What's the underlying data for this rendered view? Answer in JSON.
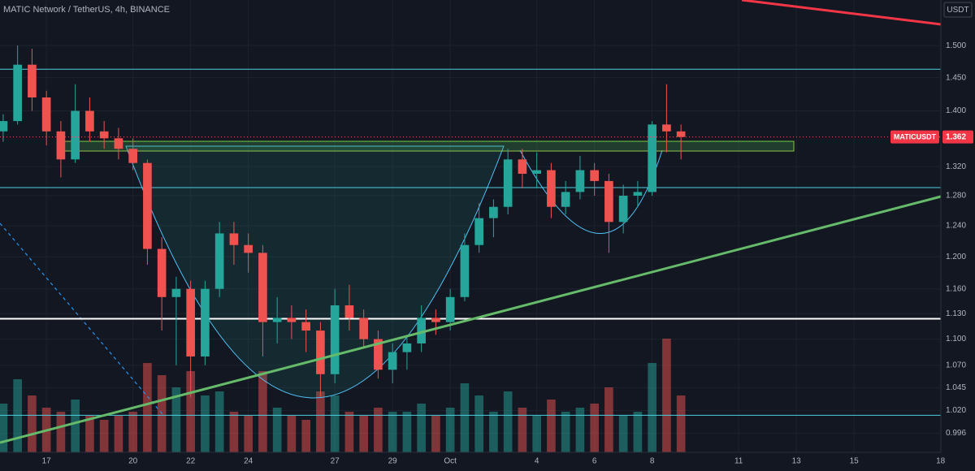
{
  "chart_data": {
    "type": "candlestick",
    "title": "MATIC Network / TetherUS, 4h, BINANCE",
    "currency": "USDT",
    "log_scale": true,
    "grid": true,
    "up_color": "#26a69a",
    "down_color": "#ef5350",
    "x": [
      15.5,
      16,
      16.5,
      17,
      17.5,
      18,
      18.5,
      19,
      19.5,
      20,
      20.5,
      21,
      21.5,
      22,
      22.5,
      23,
      23.5,
      24,
      24.5,
      25,
      25.5,
      26,
      26.5,
      27,
      27.5,
      28,
      28.5,
      29,
      29.5,
      30,
      30.5,
      31,
      31.5,
      32,
      32.5,
      33,
      33.5,
      34,
      34.5,
      35,
      35.5,
      36,
      36.5,
      37,
      37.5,
      38,
      38.5,
      39
    ],
    "open": [
      1.37,
      1.385,
      1.47,
      1.42,
      1.37,
      1.33,
      1.4,
      1.37,
      1.36,
      1.345,
      1.325,
      1.21,
      1.15,
      1.16,
      1.08,
      1.16,
      1.23,
      1.215,
      1.205,
      1.12,
      1.125,
      1.12,
      1.11,
      1.06,
      1.14,
      1.125,
      1.1,
      1.065,
      1.085,
      1.095,
      1.125,
      1.12,
      1.15,
      1.215,
      1.25,
      1.265,
      1.33,
      1.31,
      1.315,
      1.265,
      1.285,
      1.315,
      1.3,
      1.245,
      1.28,
      1.285,
      1.38,
      1.37
    ],
    "high": [
      1.395,
      1.5,
      1.495,
      1.43,
      1.385,
      1.44,
      1.42,
      1.385,
      1.375,
      1.36,
      1.33,
      1.225,
      1.175,
      1.17,
      1.17,
      1.245,
      1.245,
      1.23,
      1.215,
      1.15,
      1.14,
      1.135,
      1.12,
      1.16,
      1.165,
      1.135,
      1.11,
      1.095,
      1.105,
      1.14,
      1.135,
      1.16,
      1.23,
      1.27,
      1.275,
      1.345,
      1.345,
      1.34,
      1.325,
      1.3,
      1.335,
      1.325,
      1.31,
      1.295,
      1.3,
      1.385,
      1.44,
      1.38
    ],
    "low": [
      1.355,
      1.38,
      1.4,
      1.35,
      1.305,
      1.325,
      1.355,
      1.345,
      1.33,
      1.315,
      1.19,
      1.11,
      1.07,
      1.035,
      1.07,
      1.15,
      1.19,
      1.18,
      1.08,
      1.095,
      1.1,
      1.085,
      1.035,
      1.05,
      1.11,
      1.09,
      1.055,
      1.05,
      1.065,
      1.085,
      1.105,
      1.11,
      1.145,
      1.205,
      1.225,
      1.255,
      1.29,
      1.29,
      1.25,
      1.255,
      1.275,
      1.28,
      1.205,
      1.23,
      1.265,
      1.28,
      1.34,
      1.33
    ],
    "close": [
      1.385,
      1.47,
      1.42,
      1.37,
      1.33,
      1.4,
      1.37,
      1.36,
      1.345,
      1.325,
      1.21,
      1.15,
      1.16,
      1.08,
      1.16,
      1.23,
      1.215,
      1.205,
      1.12,
      1.125,
      1.12,
      1.11,
      1.06,
      1.14,
      1.125,
      1.1,
      1.065,
      1.085,
      1.095,
      1.125,
      1.12,
      1.15,
      1.215,
      1.25,
      1.265,
      1.33,
      1.31,
      1.315,
      1.265,
      1.285,
      1.315,
      1.3,
      1.245,
      1.28,
      1.285,
      1.38,
      1.37,
      1.362
    ],
    "volume": [
      60,
      90,
      70,
      55,
      50,
      65,
      45,
      40,
      45,
      50,
      110,
      95,
      80,
      100,
      70,
      75,
      50,
      45,
      100,
      55,
      45,
      40,
      75,
      70,
      50,
      45,
      55,
      50,
      50,
      60,
      45,
      55,
      85,
      70,
      50,
      75,
      55,
      45,
      65,
      50,
      55,
      60,
      80,
      45,
      50,
      110,
      140,
      70
    ],
    "levels": [
      1.463,
      1.291,
      1.124,
      1.015
    ],
    "last_price": {
      "symbol": "MATICUSDT",
      "value": 1.362
    },
    "xlim": [
      15.39,
      48.01
    ],
    "ylim": [
      0.976,
      1.574
    ],
    "xticks": [
      17,
      20,
      22,
      24,
      27,
      29,
      {
        "value": 31,
        "label": "Oct"
      },
      {
        "value": 34,
        "label": "4"
      },
      {
        "value": 36,
        "label": "6"
      },
      {
        "value": 38,
        "label": "8"
      },
      {
        "value": 41,
        "label": "11"
      },
      {
        "value": 43,
        "label": "13"
      },
      {
        "value": 45,
        "label": "15"
      },
      {
        "value": 48,
        "label": "18"
      }
    ],
    "yticks": [
      {
        "value": 1.5,
        "label": "1.500"
      },
      {
        "value": 1.45,
        "label": "1.450"
      },
      {
        "value": 1.4,
        "label": "1.400"
      },
      {
        "value": 1.32,
        "label": "1.320"
      },
      {
        "value": 1.28,
        "label": "1.280"
      },
      {
        "value": 1.24,
        "label": "1.240"
      },
      {
        "value": 1.2,
        "label": "1.200"
      },
      {
        "value": 1.16,
        "label": "1.160"
      },
      {
        "value": 1.13,
        "label": "1.130"
      },
      {
        "value": 1.1,
        "label": "1.100"
      },
      {
        "value": 1.07,
        "label": "1.070"
      },
      1.045,
      {
        "value": 1.02,
        "label": "1.020"
      },
      0.996
    ]
  }
}
